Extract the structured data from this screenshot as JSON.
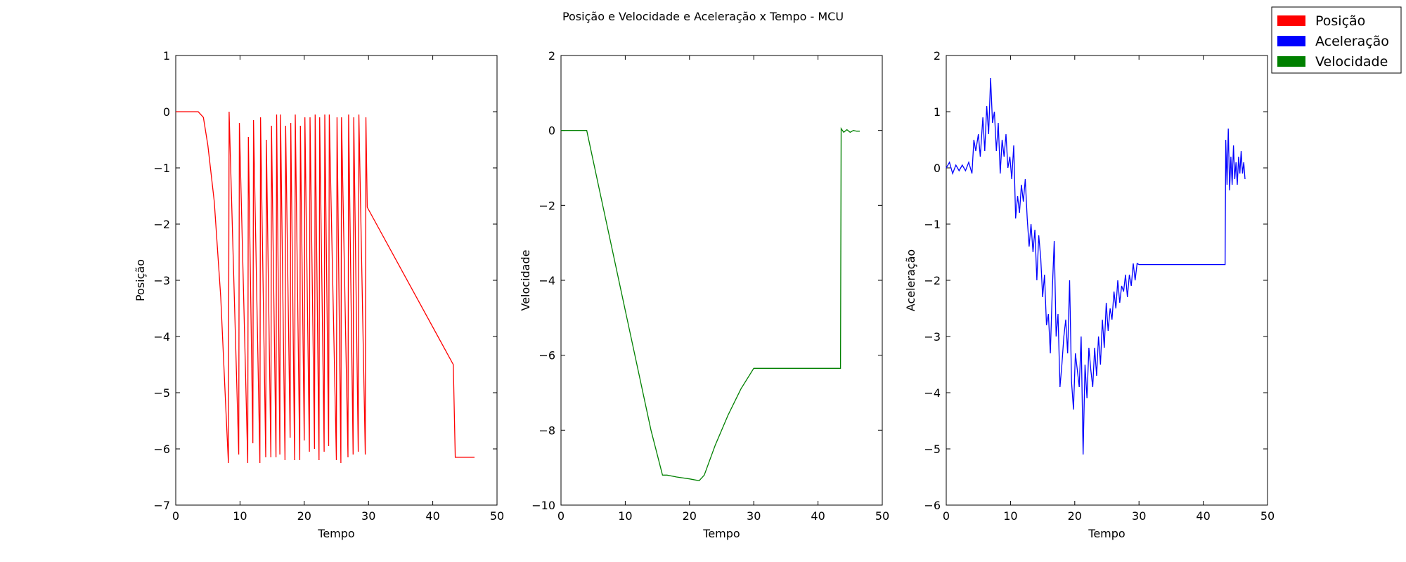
{
  "figure": {
    "title": "Posição e Velocidade e Aceleração x Tempo - MCU",
    "legend": {
      "placement": "top-right",
      "entries": [
        {
          "label": "Posição",
          "color": "#ff0000"
        },
        {
          "label": "Aceleração",
          "color": "#0000ff"
        },
        {
          "label": "Velocidade",
          "color": "#008000"
        }
      ]
    }
  },
  "chart_data": [
    {
      "type": "line",
      "xlabel": "Tempo",
      "ylabel": "Posição",
      "xlim": [
        0,
        50
      ],
      "ylim": [
        -7,
        1
      ],
      "xticks": [
        0,
        10,
        20,
        30,
        40,
        50
      ],
      "yticks": [
        1,
        0,
        -1,
        -2,
        -3,
        -4,
        -5,
        -6,
        -7
      ],
      "series": [
        {
          "color": "#ff0000",
          "x": [
            0,
            3.5,
            4.3,
            5.0,
            6.0,
            7.0,
            7.8,
            8.2,
            8.3,
            9.8,
            9.9,
            11.2,
            11.3,
            12.0,
            12.1,
            13.1,
            13.2,
            14.0,
            14.1,
            14.8,
            14.9,
            15.6,
            15.7,
            16.2,
            16.3,
            17.0,
            17.1,
            17.8,
            17.9,
            18.5,
            18.6,
            19.3,
            19.4,
            20.0,
            20.1,
            20.8,
            20.9,
            21.6,
            21.7,
            22.3,
            22.4,
            23.1,
            23.2,
            23.8,
            23.9,
            25.0,
            25.1,
            25.7,
            25.8,
            26.8,
            26.9,
            27.6,
            27.7,
            28.4,
            28.5,
            29.5,
            29.6,
            29.8,
            43.2,
            43.5,
            44.5,
            46.5
          ],
          "y": [
            0,
            0,
            -0.1,
            -0.6,
            -1.6,
            -3.3,
            -5.3,
            -6.25,
            0,
            -6.1,
            -0.2,
            -6.25,
            -0.45,
            -5.9,
            -0.15,
            -6.25,
            -0.1,
            -6.15,
            -0.5,
            -6.15,
            -0.25,
            -6.15,
            -0.05,
            -6.1,
            -0.05,
            -6.2,
            -0.25,
            -5.8,
            -0.2,
            -6.2,
            -0.05,
            -6.2,
            -0.25,
            -5.85,
            -0.1,
            -6.05,
            -0.1,
            -6.0,
            -0.05,
            -6.2,
            -0.1,
            -6.05,
            -0.05,
            -5.95,
            -0.05,
            -6.2,
            -0.1,
            -6.25,
            -0.1,
            -6.15,
            -0.05,
            -6.1,
            -0.1,
            -6.05,
            -0.05,
            -6.1,
            -0.1,
            -1.7,
            -4.5,
            -6.15,
            -6.15,
            -6.15
          ]
        }
      ]
    },
    {
      "type": "line",
      "xlabel": "Tempo",
      "ylabel": "Velocidade",
      "xlim": [
        0,
        50
      ],
      "ylim": [
        -10,
        2
      ],
      "xticks": [
        0,
        10,
        20,
        30,
        40,
        50
      ],
      "yticks": [
        2,
        0,
        -2,
        -4,
        -6,
        -8,
        -10
      ],
      "series": [
        {
          "color": "#008000",
          "x": [
            0,
            4.0,
            6.0,
            8.0,
            10.0,
            12.0,
            14.0,
            15.8,
            16.5,
            18.0,
            20.0,
            21.5,
            22.3,
            24.0,
            26.0,
            28.0,
            30.0,
            35.0,
            40.0,
            43.5,
            43.6,
            44.0,
            44.5,
            45.0,
            45.5,
            46.0,
            46.5
          ],
          "y": [
            0,
            0,
            -1.6,
            -3.2,
            -4.8,
            -6.4,
            -8.0,
            -9.2,
            -9.2,
            -9.25,
            -9.3,
            -9.35,
            -9.2,
            -8.4,
            -7.6,
            -6.9,
            -6.35,
            -6.35,
            -6.35,
            -6.35,
            0.05,
            -0.05,
            0.02,
            -0.05,
            0.0,
            -0.02,
            -0.02
          ]
        }
      ]
    },
    {
      "type": "line",
      "xlabel": "Tempo",
      "ylabel": "Aceleração",
      "xlim": [
        0,
        50
      ],
      "ylim": [
        -6,
        2
      ],
      "xticks": [
        0,
        10,
        20,
        30,
        40,
        50
      ],
      "yticks": [
        2,
        1,
        0,
        -1,
        -2,
        -3,
        -4,
        -5,
        -6
      ],
      "series": [
        {
          "color": "#0000ff",
          "x": [
            0,
            0.5,
            1.0,
            1.5,
            2.0,
            2.5,
            3.0,
            3.5,
            4.0,
            4.3,
            4.6,
            5.0,
            5.3,
            5.7,
            6.0,
            6.3,
            6.6,
            6.9,
            7.2,
            7.5,
            7.8,
            8.1,
            8.4,
            8.7,
            9.0,
            9.3,
            9.6,
            9.9,
            10.2,
            10.5,
            10.8,
            11.1,
            11.4,
            11.7,
            12.0,
            12.3,
            12.6,
            12.9,
            13.2,
            13.5,
            13.8,
            14.1,
            14.4,
            14.7,
            15.0,
            15.3,
            15.6,
            15.9,
            16.2,
            16.5,
            16.8,
            17.1,
            17.4,
            17.7,
            18.0,
            18.3,
            18.6,
            18.9,
            19.2,
            19.5,
            19.8,
            20.1,
            20.4,
            20.7,
            21.0,
            21.3,
            21.6,
            21.9,
            22.2,
            22.5,
            22.8,
            23.1,
            23.4,
            23.7,
            24.0,
            24.3,
            24.6,
            24.9,
            25.2,
            25.5,
            25.8,
            26.1,
            26.4,
            26.7,
            27.0,
            27.3,
            27.6,
            27.9,
            28.2,
            28.5,
            28.8,
            29.1,
            29.4,
            29.7,
            30.0,
            35.0,
            40.0,
            43.4,
            43.5,
            43.7,
            43.9,
            44.1,
            44.3,
            44.5,
            44.7,
            44.9,
            45.1,
            45.3,
            45.5,
            45.7,
            45.9,
            46.1,
            46.3,
            46.5
          ],
          "y": [
            0,
            0.1,
            -0.1,
            0.05,
            -0.05,
            0.05,
            -0.05,
            0.1,
            -0.1,
            0.5,
            0.3,
            0.6,
            0.2,
            0.9,
            0.3,
            1.1,
            0.6,
            1.6,
            0.8,
            1.0,
            0.3,
            0.8,
            -0.1,
            0.5,
            0.2,
            0.6,
            0.0,
            0.2,
            -0.2,
            0.4,
            -0.9,
            -0.5,
            -0.8,
            -0.3,
            -0.6,
            -0.2,
            -0.9,
            -1.4,
            -1.0,
            -1.5,
            -1.1,
            -2.0,
            -1.2,
            -1.6,
            -2.3,
            -1.9,
            -2.8,
            -2.6,
            -3.3,
            -2.2,
            -1.3,
            -3.0,
            -2.6,
            -3.9,
            -3.5,
            -3.0,
            -2.7,
            -3.3,
            -2.0,
            -3.8,
            -4.3,
            -3.3,
            -3.6,
            -3.9,
            -3.0,
            -5.1,
            -3.5,
            -4.1,
            -3.2,
            -3.6,
            -3.9,
            -3.2,
            -3.7,
            -3.0,
            -3.5,
            -2.7,
            -3.2,
            -2.4,
            -2.9,
            -2.5,
            -2.7,
            -2.2,
            -2.5,
            -2.0,
            -2.4,
            -2.1,
            -2.2,
            -1.9,
            -2.3,
            -1.9,
            -2.1,
            -1.7,
            -2.0,
            -1.7,
            -1.72,
            -1.72,
            -1.72,
            -1.72,
            0.5,
            -0.3,
            0.7,
            -0.4,
            0.2,
            -0.3,
            0.4,
            -0.2,
            0.1,
            -0.3,
            0.2,
            -0.1,
            0.3,
            -0.1,
            0.1,
            -0.2
          ]
        }
      ]
    }
  ]
}
